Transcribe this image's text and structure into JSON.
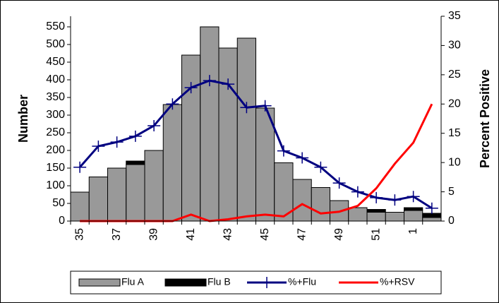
{
  "chart_data": {
    "type": "bar-line",
    "y_label": "Number",
    "y2_label": "Percent Positive",
    "categories": [
      "35",
      null,
      "37",
      null,
      "39",
      null,
      "41",
      null,
      "43",
      null,
      "45",
      null,
      "47",
      null,
      "49",
      null,
      "51",
      null,
      "1",
      null
    ],
    "series": [
      {
        "name": "Flu A",
        "kind": "bar",
        "color": "#999999",
        "values": [
          82,
          125,
          150,
          160,
          200,
          330,
          470,
          550,
          490,
          518,
          320,
          165,
          118,
          95,
          58,
          38,
          25,
          25,
          30,
          10
        ]
      },
      {
        "name": "Flu B",
        "kind": "bar",
        "color": "#000000",
        "values": [
          0,
          0,
          0,
          10,
          0,
          0,
          0,
          0,
          0,
          0,
          0,
          0,
          0,
          0,
          0,
          0,
          8,
          0,
          8,
          12
        ]
      },
      {
        "name": "%+Flu",
        "kind": "line",
        "axis": "y2",
        "color": "#000080",
        "values": [
          9.2,
          12.8,
          13.5,
          14.5,
          16.3,
          20,
          22.8,
          24,
          23.4,
          19.4,
          19.7,
          12,
          10.8,
          9.2,
          6.5,
          5,
          4,
          3.6,
          4.2,
          2.2
        ]
      },
      {
        "name": "%+RSV",
        "kind": "line",
        "axis": "y2",
        "color": "#ff0000",
        "values": [
          0,
          0,
          0,
          0,
          0,
          0,
          1.1,
          0,
          0.3,
          0.8,
          1.1,
          0.8,
          2.9,
          1.3,
          1.6,
          2.6,
          5.6,
          9.8,
          13.4,
          20
        ]
      }
    ],
    "ylim": [
      0,
      580
    ],
    "yticks": [
      0,
      50,
      100,
      150,
      200,
      250,
      300,
      350,
      400,
      450,
      500,
      550
    ],
    "y2lim": [
      0,
      35
    ],
    "y2ticks": [
      0,
      5,
      10,
      15,
      20,
      25,
      30,
      35
    ]
  }
}
